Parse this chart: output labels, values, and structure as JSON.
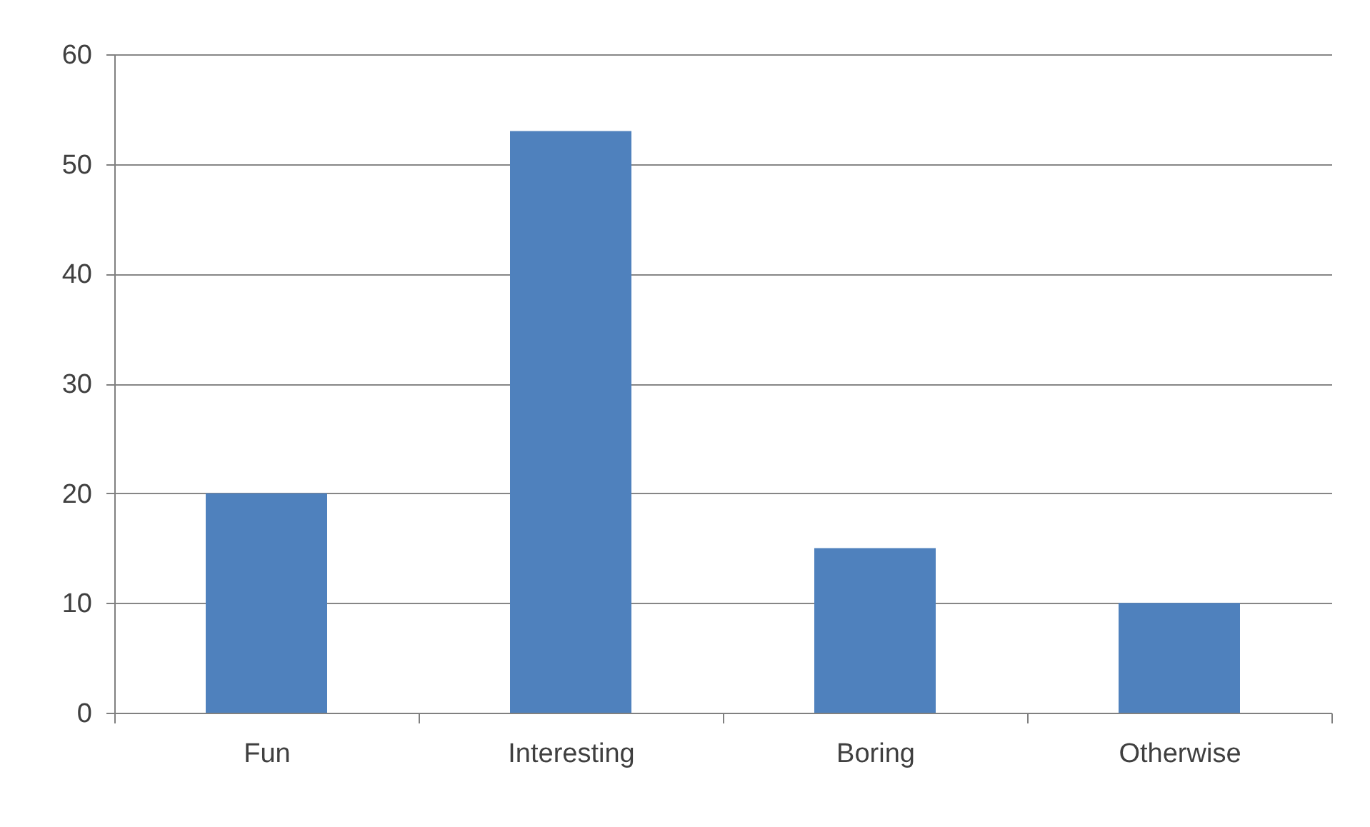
{
  "chart_data": {
    "type": "bar",
    "categories": [
      "Fun",
      "Interesting",
      "Boring",
      "Otherwise"
    ],
    "values": [
      20,
      53,
      15,
      10
    ],
    "color": "#4f81bd",
    "ylim": [
      0,
      60
    ],
    "yticks": [
      0,
      10,
      20,
      30,
      40,
      50,
      60
    ],
    "grid": "y"
  }
}
